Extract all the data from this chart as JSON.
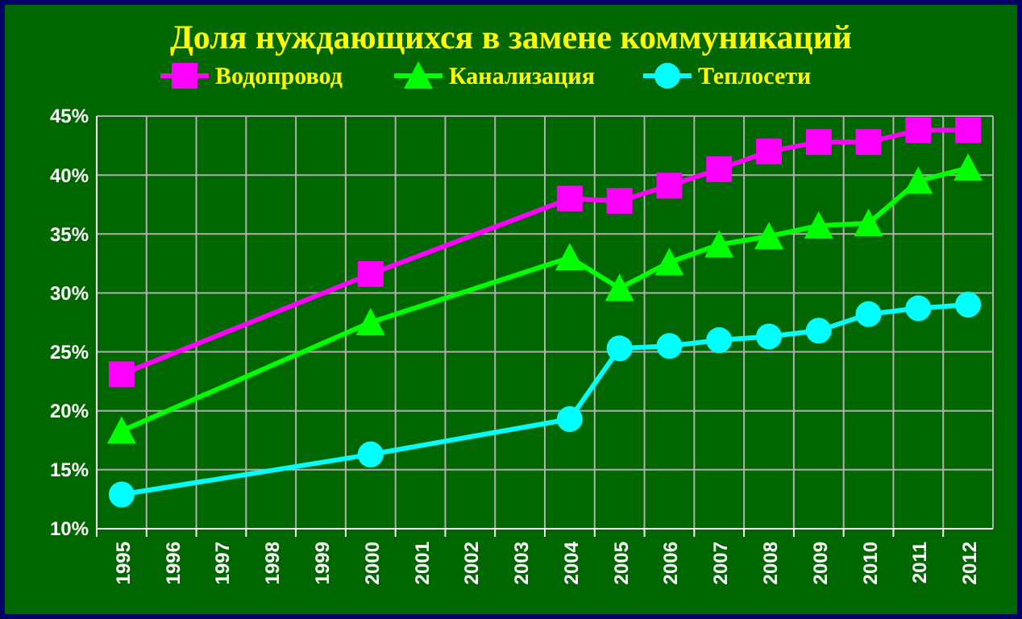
{
  "chart_data": {
    "type": "line",
    "title": "Доля нуждающихся в замене коммуникаций",
    "categories": [
      "1995",
      "1996",
      "1997",
      "1998",
      "1999",
      "2000",
      "2001",
      "2002",
      "2003",
      "2004",
      "2005",
      "2006",
      "2007",
      "2008",
      "2009",
      "2010",
      "2011",
      "2012"
    ],
    "series": [
      {
        "name": "Водопровод",
        "color": "#ff00ff",
        "marker": "square",
        "values": [
          23.1,
          null,
          null,
          null,
          null,
          31.6,
          null,
          null,
          null,
          38.0,
          37.8,
          39.1,
          40.5,
          42.0,
          42.8,
          42.8,
          43.8,
          43.8
        ]
      },
      {
        "name": "Канализация",
        "color": "#00ff00",
        "marker": "triangle",
        "values": [
          18.3,
          null,
          null,
          null,
          null,
          27.5,
          null,
          null,
          null,
          33.0,
          30.4,
          32.6,
          34.1,
          34.8,
          35.7,
          35.9,
          39.5,
          40.6
        ]
      },
      {
        "name": "Теплосети",
        "color": "#00ffff",
        "marker": "circle",
        "values": [
          12.9,
          null,
          null,
          null,
          null,
          16.3,
          null,
          null,
          null,
          19.3,
          25.3,
          25.5,
          26.0,
          26.3,
          26.8,
          28.2,
          28.7,
          29.0
        ]
      }
    ],
    "ylim": [
      10,
      45
    ],
    "yticks": [
      {
        "value": 10,
        "label": "10%"
      },
      {
        "value": 15,
        "label": "15%"
      },
      {
        "value": 20,
        "label": "20%"
      },
      {
        "value": 25,
        "label": "25%"
      },
      {
        "value": 30,
        "label": "30%"
      },
      {
        "value": 35,
        "label": "35%"
      },
      {
        "value": 40,
        "label": "40%"
      },
      {
        "value": 45,
        "label": "45%"
      }
    ],
    "grid": true,
    "legend": "top",
    "line_style": "solid"
  }
}
